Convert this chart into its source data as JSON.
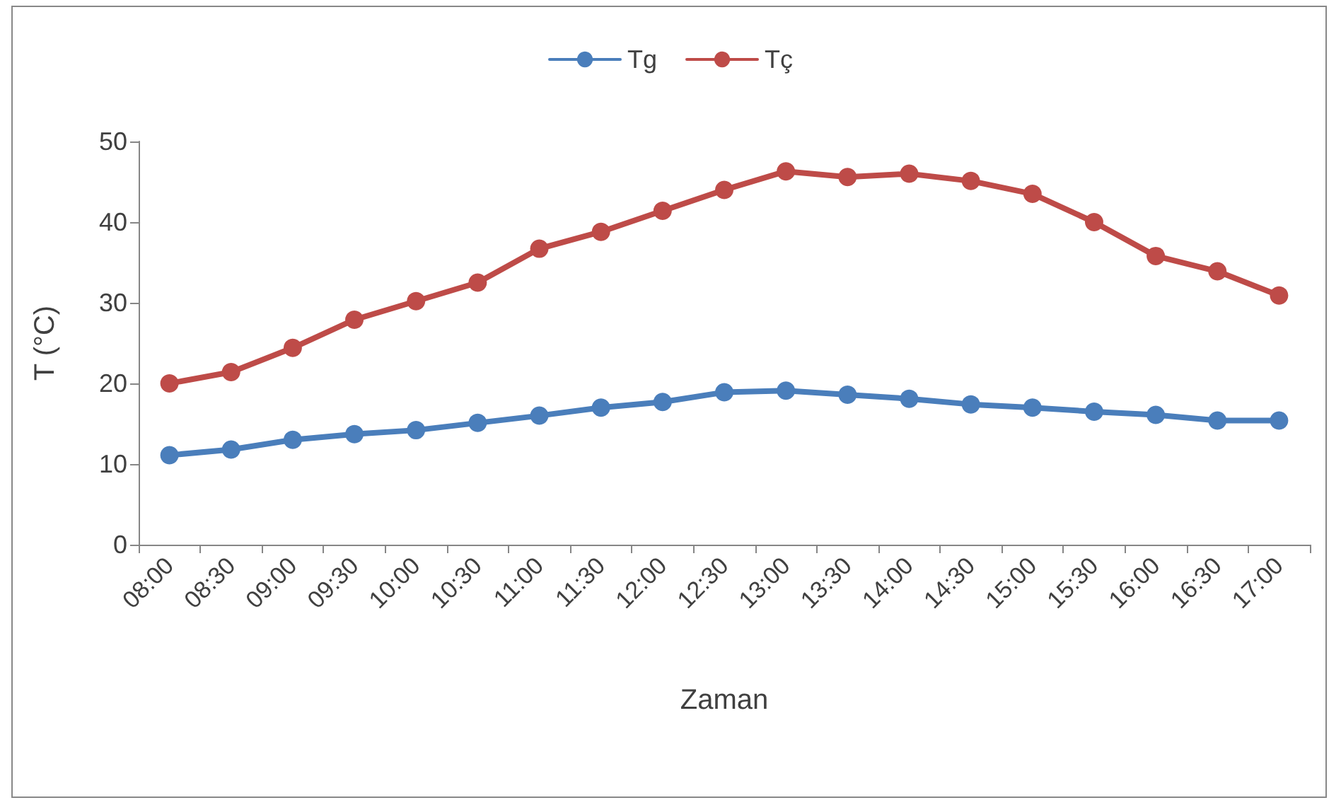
{
  "chart_data": {
    "type": "line",
    "xlabel": "Zaman",
    "ylabel": "T (°C)",
    "categories": [
      "08:00",
      "08:30",
      "09:00",
      "09:30",
      "10:00",
      "10:30",
      "11:00",
      "11:30",
      "12:00",
      "12:30",
      "13:00",
      "13:30",
      "14:00",
      "14:30",
      "15:00",
      "15:30",
      "16:00",
      "16:30",
      "17:00"
    ],
    "series": [
      {
        "name": "Tg",
        "color": "#4a7ebb",
        "values": [
          11.1,
          11.8,
          13.0,
          13.7,
          14.2,
          15.1,
          16.0,
          17.0,
          17.7,
          18.9,
          19.1,
          18.6,
          18.1,
          17.4,
          17.0,
          16.5,
          16.1,
          15.4,
          15.4
        ]
      },
      {
        "name": "Tç",
        "color": "#be4b48",
        "values": [
          20.0,
          21.4,
          24.4,
          27.9,
          30.2,
          32.5,
          36.7,
          38.8,
          41.4,
          44.0,
          46.3,
          45.6,
          46.0,
          45.1,
          43.5,
          40.0,
          35.8,
          33.9,
          30.9
        ]
      }
    ],
    "ylim": [
      0,
      50
    ],
    "yticks": [
      0,
      10,
      20,
      30,
      40,
      50
    ],
    "grid": false,
    "legend": "top",
    "marker": "circle",
    "line_style": "solid"
  }
}
